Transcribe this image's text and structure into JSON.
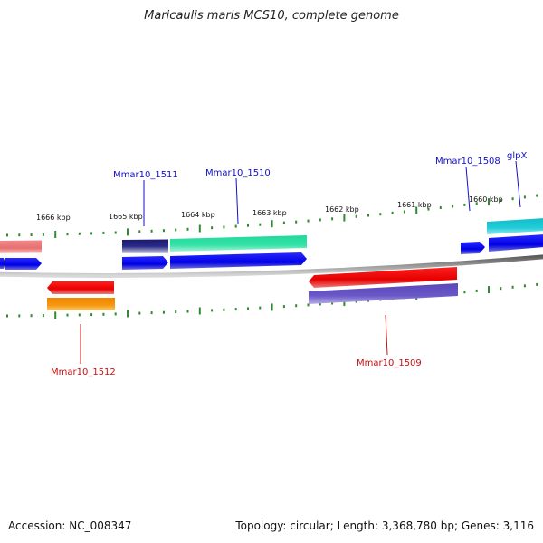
{
  "title": "Maricaulis maris MCS10, complete genome",
  "footer": {
    "accession_label": "Accession:",
    "accession": "NC_008347",
    "topology_label": "Topology:",
    "topology": "circular",
    "length_label": "Length:",
    "length": "3,368,780 bp",
    "genes_label": "Genes:",
    "genes": "3,116"
  },
  "scale_labels": [
    "1666 kbp",
    "1665 kbp",
    "1664 kbp",
    "1663 kbp",
    "1662 kbp",
    "1661 kbp",
    "1660 kbp"
  ],
  "gene_labels": {
    "top": [
      "Mmar10_1511",
      "Mmar10_1510",
      "Mmar10_1508",
      "glpX"
    ],
    "bottom": [
      "Mmar10_1512",
      "Mmar10_1509"
    ]
  },
  "colors": {
    "backbone": "#8a8a8a",
    "tick": "#2e8b2e",
    "forward_label": "#1010c8",
    "reverse_label": "#c81010",
    "cds_forward": "#0000ee",
    "cds_reverse": "#ee0000"
  }
}
